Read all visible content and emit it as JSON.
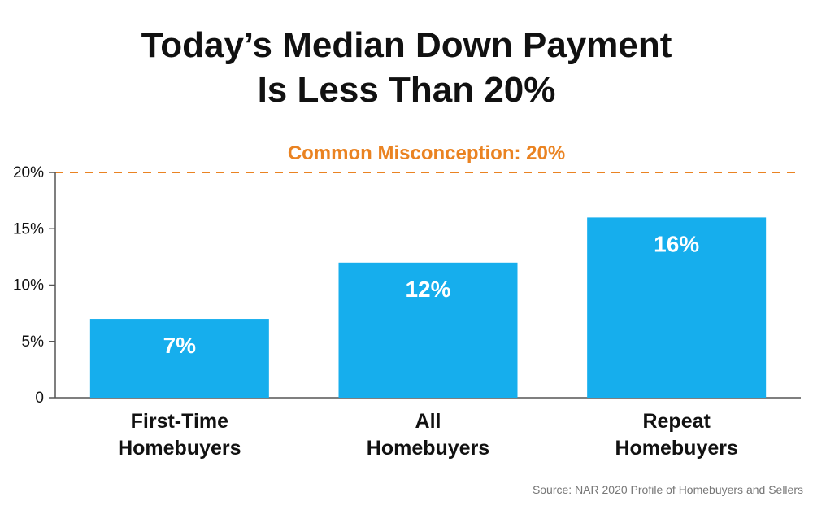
{
  "chart_data": {
    "type": "bar",
    "title": [
      "Today’s Median Down Payment",
      "Is Less Than 20%"
    ],
    "categories": [
      [
        "First-Time",
        "Homebuyers"
      ],
      [
        "All",
        "Homebuyers"
      ],
      [
        "Repeat",
        "Homebuyers"
      ]
    ],
    "values": [
      7,
      12,
      16
    ],
    "data_labels": [
      "7%",
      "12%",
      "16%"
    ],
    "ylim": [
      0,
      20
    ],
    "yticks": [
      {
        "value": 0,
        "label": "0"
      },
      {
        "value": 5,
        "label": "5%"
      },
      {
        "value": 10,
        "label": "10%"
      },
      {
        "value": 15,
        "label": "15%"
      },
      {
        "value": 20,
        "label": "20%"
      }
    ],
    "reference_line": {
      "value": 20,
      "label": "Common Misconception: 20%",
      "style": "dashed"
    },
    "grid": false,
    "source": "Source: NAR 2020 Profile of Homebuyers and Sellers"
  },
  "colors": {
    "bar": "#16aeed",
    "reference": "#ea8322",
    "text": "#111111",
    "axis": "#555555",
    "source": "#777777",
    "data_label": "#ffffff"
  }
}
